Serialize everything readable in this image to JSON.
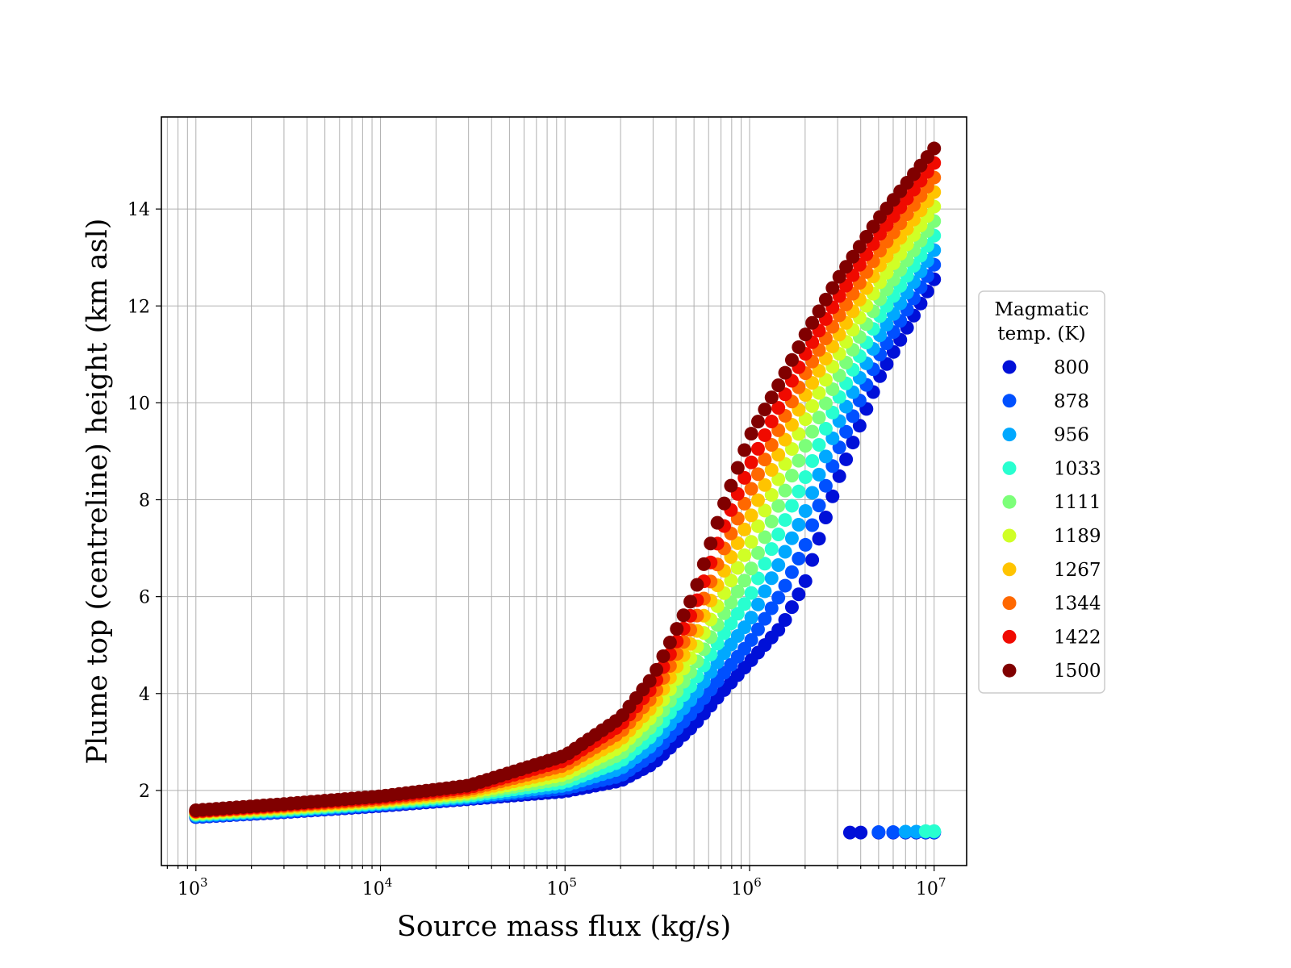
{
  "chart_data": {
    "type": "scatter",
    "xlabel": "Source mass flux (kg/s)",
    "ylabel": "Plume top (centreline) height (km asl)",
    "xscale": "log",
    "xlim": [
      650,
      15000000
    ],
    "ylim": [
      0.45,
      15.9
    ],
    "x_ticks": [
      {
        "value": 1000,
        "base": "10",
        "exp": "3"
      },
      {
        "value": 10000,
        "base": "10",
        "exp": "4"
      },
      {
        "value": 100000,
        "base": "10",
        "exp": "5"
      },
      {
        "value": 1000000,
        "base": "10",
        "exp": "6"
      },
      {
        "value": 10000000,
        "base": "10",
        "exp": "7"
      }
    ],
    "y_ticks": [
      {
        "value": 2,
        "label": "2"
      },
      {
        "value": 4,
        "label": "4"
      },
      {
        "value": 6,
        "label": "6"
      },
      {
        "value": 8,
        "label": "8"
      },
      {
        "value": 10,
        "label": "10"
      },
      {
        "value": 12,
        "label": "12"
      },
      {
        "value": 14,
        "label": "14"
      }
    ],
    "grid": true,
    "grid_minor_x": true,
    "legend": {
      "title_lines": [
        "Magmatic",
        "temp. (K)"
      ],
      "placement": "outside-right"
    },
    "series": [
      {
        "name": "800",
        "color": "#0010d8",
        "x": [
          1000,
          3000,
          10000,
          30000,
          100000,
          200000,
          300000,
          500000,
          700000,
          1000000,
          1500000,
          2000000,
          3000000,
          5000000,
          10000000
        ],
        "y": [
          1.45,
          1.55,
          1.68,
          1.82,
          1.98,
          2.2,
          2.55,
          3.35,
          4.0,
          4.65,
          5.4,
          6.3,
          8.4,
          10.5,
          12.55
        ],
        "collapse": {
          "x": [
            3500000,
            4000000,
            5000000,
            6000000,
            7000000,
            8000000,
            9000000,
            10000000
          ],
          "y": [
            1.13,
            1.13,
            1.13,
            1.13,
            1.13,
            1.13,
            1.13,
            1.13
          ]
        }
      },
      {
        "name": "878",
        "color": "#0050ff",
        "x": [
          1000,
          3000,
          10000,
          30000,
          100000,
          200000,
          300000,
          500000,
          700000,
          1000000,
          1500000,
          2000000,
          3000000,
          5000000,
          10000000
        ],
        "y": [
          1.46,
          1.56,
          1.7,
          1.84,
          2.04,
          2.3,
          2.75,
          3.65,
          4.35,
          5.05,
          6.1,
          7.05,
          9.0,
          10.95,
          12.85
        ],
        "collapse": {
          "x": [
            5000000,
            6000000,
            7000000,
            8000000,
            9000000,
            10000000
          ],
          "y": [
            1.14,
            1.14,
            1.14,
            1.14,
            1.14,
            1.14
          ]
        }
      },
      {
        "name": "956",
        "color": "#00a8ff",
        "x": [
          1000,
          3000,
          10000,
          30000,
          100000,
          200000,
          300000,
          500000,
          700000,
          1000000,
          1500000,
          2000000,
          3000000,
          5000000,
          10000000
        ],
        "y": [
          1.48,
          1.58,
          1.72,
          1.86,
          2.1,
          2.45,
          2.95,
          3.95,
          4.75,
          5.5,
          6.8,
          7.75,
          9.55,
          11.35,
          13.15
        ],
        "collapse": {
          "x": [
            7000000,
            8000000,
            9000000,
            10000000
          ],
          "y": [
            1.15,
            1.15,
            1.15,
            1.15
          ]
        }
      },
      {
        "name": "1033",
        "color": "#28ffd0",
        "x": [
          1000,
          3000,
          10000,
          30000,
          100000,
          200000,
          300000,
          500000,
          700000,
          1000000,
          1500000,
          2000000,
          3000000,
          5000000,
          10000000
        ],
        "y": [
          1.5,
          1.6,
          1.74,
          1.89,
          2.17,
          2.6,
          3.15,
          4.25,
          5.15,
          6.0,
          7.45,
          8.45,
          10.05,
          11.75,
          13.45
        ],
        "collapse": {
          "x": [
            9000000,
            10000000
          ],
          "y": [
            1.16,
            1.16
          ]
        }
      },
      {
        "name": "1111",
        "color": "#7cff79",
        "x": [
          1000,
          3000,
          10000,
          30000,
          100000,
          200000,
          300000,
          500000,
          700000,
          1000000,
          1500000,
          2000000,
          3000000,
          5000000,
          10000000
        ],
        "y": [
          1.51,
          1.62,
          1.76,
          1.92,
          2.25,
          2.75,
          3.35,
          4.55,
          5.55,
          6.5,
          8.05,
          9.1,
          10.5,
          12.1,
          13.75
        ]
      },
      {
        "name": "1189",
        "color": "#d0ff26",
        "x": [
          1000,
          3000,
          10000,
          30000,
          100000,
          200000,
          300000,
          500000,
          700000,
          1000000,
          1500000,
          2000000,
          3000000,
          5000000,
          10000000
        ],
        "y": [
          1.53,
          1.64,
          1.78,
          1.95,
          2.33,
          2.9,
          3.55,
          4.85,
          5.95,
          7.05,
          8.6,
          9.65,
          10.95,
          12.45,
          14.05
        ]
      },
      {
        "name": "1267",
        "color": "#ffc400",
        "x": [
          1000,
          3000,
          10000,
          30000,
          100000,
          200000,
          300000,
          500000,
          700000,
          1000000,
          1500000,
          2000000,
          3000000,
          5000000,
          10000000
        ],
        "y": [
          1.55,
          1.66,
          1.8,
          1.98,
          2.42,
          3.05,
          3.75,
          5.15,
          6.4,
          7.6,
          9.1,
          10.15,
          11.35,
          12.8,
          14.35
        ]
      },
      {
        "name": "1344",
        "color": "#ff6800",
        "x": [
          1000,
          3000,
          10000,
          30000,
          100000,
          200000,
          300000,
          500000,
          700000,
          1000000,
          1500000,
          2000000,
          3000000,
          5000000,
          10000000
        ],
        "y": [
          1.56,
          1.68,
          1.82,
          2.02,
          2.52,
          3.2,
          3.95,
          5.45,
          6.85,
          8.15,
          9.6,
          10.6,
          11.75,
          13.1,
          14.65
        ]
      },
      {
        "name": "1422",
        "color": "#f00a00",
        "x": [
          1000,
          3000,
          10000,
          30000,
          100000,
          200000,
          300000,
          500000,
          700000,
          1000000,
          1500000,
          2000000,
          3000000,
          5000000,
          10000000
        ],
        "y": [
          1.57,
          1.7,
          1.85,
          2.06,
          2.62,
          3.35,
          4.15,
          5.75,
          7.3,
          8.7,
          10.05,
          11.0,
          12.15,
          13.45,
          14.95
        ]
      },
      {
        "name": "1500",
        "color": "#800000",
        "x": [
          1000,
          3000,
          10000,
          30000,
          100000,
          200000,
          300000,
          500000,
          700000,
          1000000,
          1500000,
          2000000,
          3000000,
          5000000,
          10000000
        ],
        "y": [
          1.59,
          1.72,
          1.88,
          2.1,
          2.72,
          3.5,
          4.35,
          6.05,
          7.75,
          9.3,
          10.5,
          11.4,
          12.55,
          13.8,
          15.25
        ]
      }
    ]
  }
}
